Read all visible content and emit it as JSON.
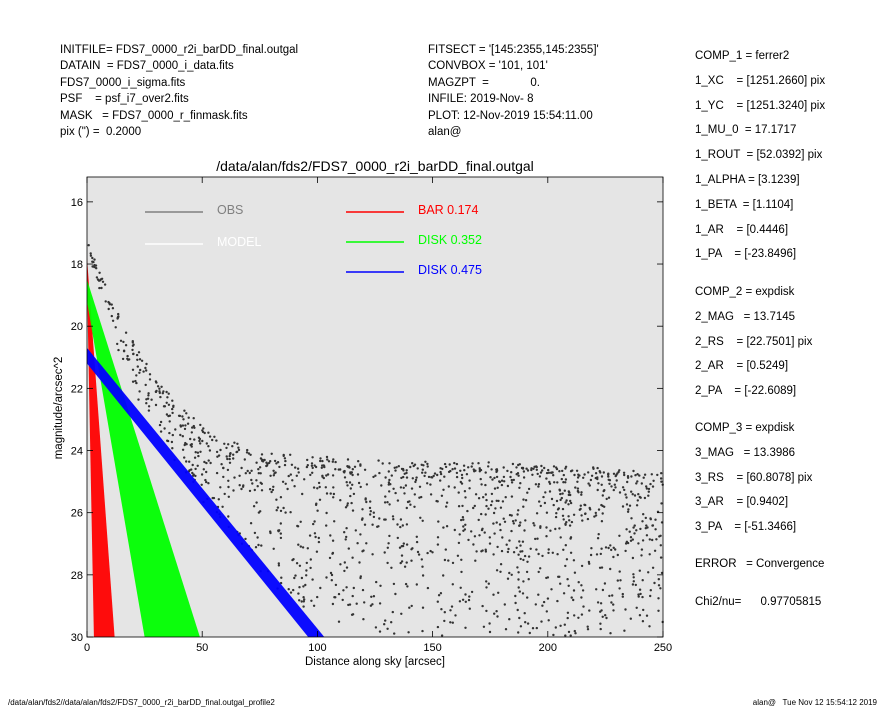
{
  "header_left": [
    "INITFILE= FDS7_0000_r2i_barDD_final.outgal",
    "DATAIN  = FDS7_0000_i_data.fits",
    "FDS7_0000_i_sigma.fits",
    "PSF    = psf_i7_over2.fits",
    "MASK   = FDS7_0000_r_finmask.fits",
    "pix (\") =  0.2000"
  ],
  "header_mid": [
    "FITSECT = '[145:2355,145:2355]'",
    "CONVBOX = '101, 101'",
    "MAGZPT  =             0.",
    "INFILE: 2019-Nov- 8",
    "PLOT: 12-Nov-2019 15:54:11.00",
    "alan@"
  ],
  "components": [
    [
      "COMP_1 = ferrer2",
      "1_XC    = [1251.2660] pix",
      "1_YC    = [1251.3240] pix",
      "1_MU_0  = 17.1717",
      "1_ROUT  = [52.0392] pix",
      "1_ALPHA = [3.1239]",
      "1_BETA  = [1.1104]",
      "1_AR    = [0.4446]",
      "1_PA    = [-23.8496]"
    ],
    [
      "COMP_2 = expdisk",
      "2_MAG   = 13.7145",
      "2_RS    = [22.7501] pix",
      "2_AR    = [0.5249]",
      "2_PA    = [-22.6089]"
    ],
    [
      "COMP_3 = expdisk",
      "3_MAG   = 13.3986",
      "3_RS    = [60.8078] pix",
      "3_AR    = [0.9402]",
      "3_PA    = [-51.3466]"
    ],
    [
      "ERROR   = Convergence"
    ],
    [
      "Chi2/nu=      0.97705815"
    ]
  ],
  "footer_left": "/data/alan/fds2//data/alan/fds2/FDS7_0000_r2i_barDD_final.outgal_profile2",
  "footer_right": "alan@   Tue Nov 12 15:54:12 2019",
  "colors": {
    "obs": "#808080",
    "model": "#ffffff",
    "bar": "#ff0000",
    "disk1": "#00ff00",
    "disk2": "#0000ff",
    "panel_bg": "#e5e5e5",
    "points": "#333333"
  },
  "chart_data": {
    "type": "scatter",
    "title": "/data/alan/fds2/FDS7_0000_r2i_barDD_final.outgal",
    "xlabel": "Distance along sky [arcsec]",
    "ylabel": "magnitude/arcsec^2",
    "xlim": [
      0,
      250
    ],
    "ylim": [
      30,
      15.2
    ],
    "y_inverted": true,
    "xticks": [
      0,
      50,
      100,
      150,
      200,
      250
    ],
    "yticks": [
      16,
      18,
      20,
      22,
      24,
      26,
      28,
      30
    ],
    "legend": [
      {
        "name": "OBS",
        "color": "#808080"
      },
      {
        "name": "MODEL",
        "color": "#ffffff"
      },
      {
        "name": "BAR  0.174",
        "color": "#ff0000"
      },
      {
        "name": "DISK  0.352",
        "color": "#00ff00"
      },
      {
        "name": "DISK  0.475",
        "color": "#0000ff"
      }
    ],
    "series": [
      {
        "name": "OBS",
        "kind": "points",
        "x": [
          0,
          10,
          20,
          30,
          40,
          50,
          60,
          70,
          80,
          100,
          125,
          150,
          175,
          200,
          225,
          250
        ],
        "y_bright": [
          17.4,
          19.1,
          20.6,
          21.8,
          22.7,
          23.3,
          23.8,
          24.0,
          24.2,
          24.3,
          24.4,
          24.5,
          24.5,
          24.6,
          24.7,
          24.8
        ],
        "y_faint_edge": [
          17.7,
          20.0,
          22.0,
          23.4,
          24.6,
          25.6,
          26.5,
          27.4,
          28.2,
          29.6,
          30,
          30,
          30,
          30,
          30,
          30
        ]
      },
      {
        "name": "BAR  0.174",
        "kind": "band",
        "x_start": 0,
        "y_start": [
          17.8,
          18.6
        ],
        "x_end": [
          12,
          3
        ],
        "y_end": 30
      },
      {
        "name": "DISK  0.352",
        "kind": "band",
        "x_start": 0,
        "y_start": [
          18.5,
          19.2
        ],
        "x_end": [
          49,
          25
        ],
        "y_end": 30
      },
      {
        "name": "DISK  0.475",
        "kind": "band",
        "x_start": 0,
        "y_start": [
          20.7,
          21.2
        ],
        "x_end": [
          103,
          96
        ],
        "y_end": 30
      }
    ]
  }
}
